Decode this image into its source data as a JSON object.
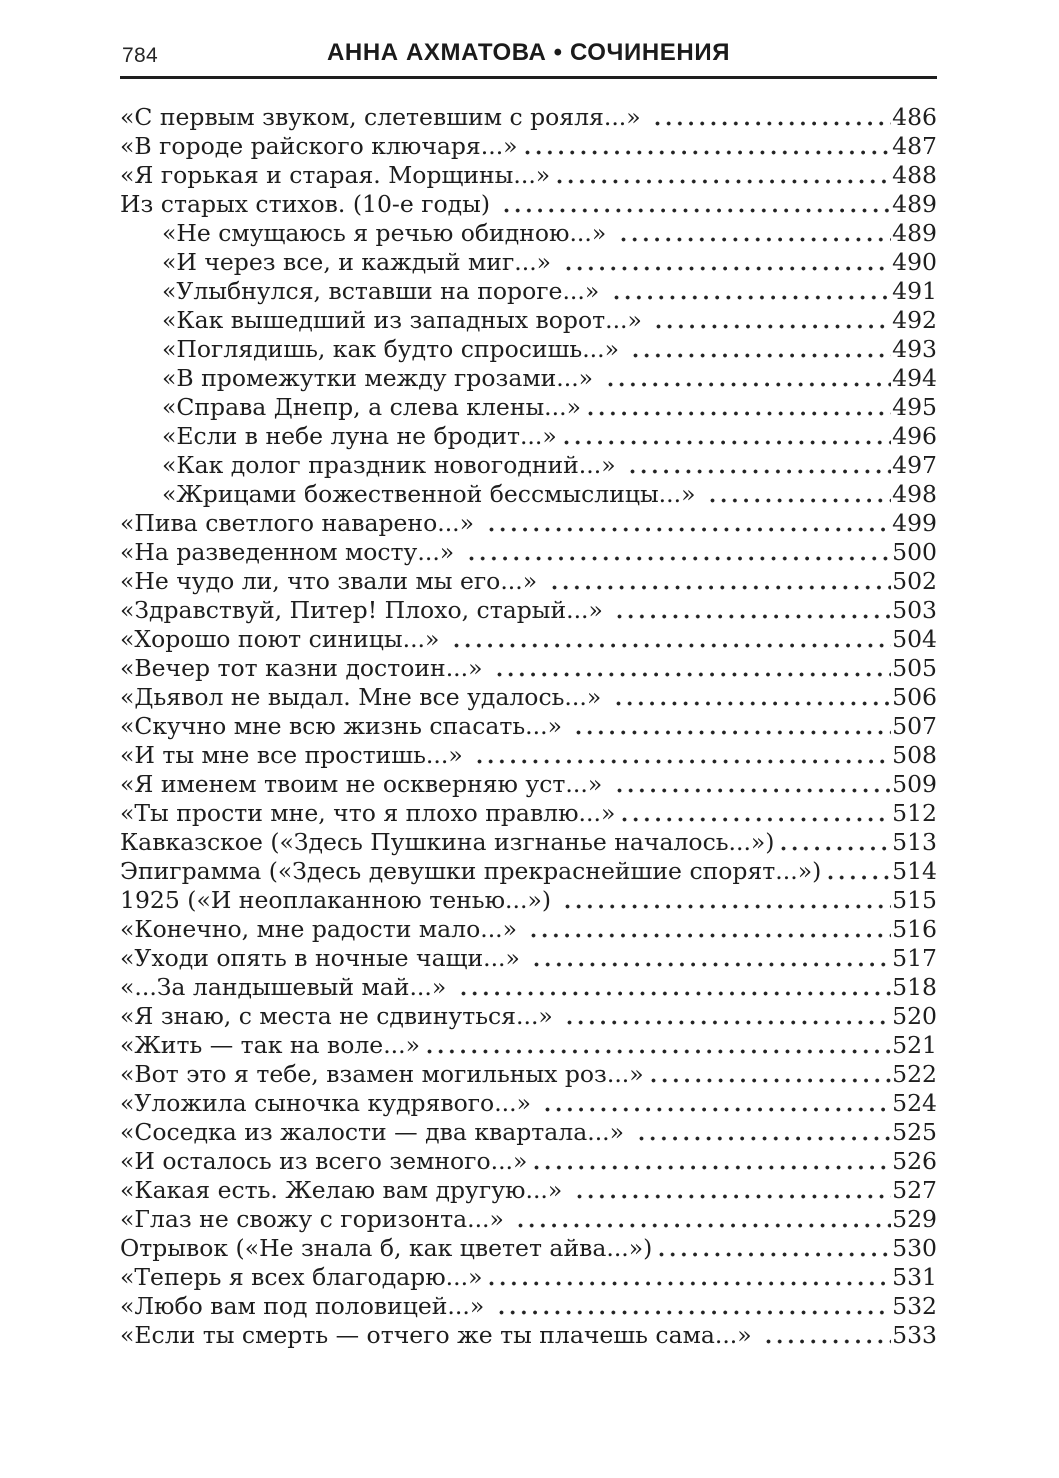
{
  "page": {
    "number": "784",
    "header_title": "АННА АХМАТОВА • СОЧИНЕНИЯ"
  },
  "colors": {
    "background": "#ffffff",
    "text": "#1e1e1e",
    "rule": "#1e1e1e"
  },
  "toc": {
    "entries": [
      {
        "title": "«С первым звуком, слетевшим с рояля...» ",
        "page": "486",
        "indent": 0
      },
      {
        "title": "«В городе райского ключаря...»",
        "page": "487",
        "indent": 0
      },
      {
        "title": "«Я горькая и старая. Морщины...»",
        "page": "488",
        "indent": 0
      },
      {
        "title": "Из старых стихов. (10-е годы) ",
        "page": "489",
        "indent": 0
      },
      {
        "title": "«Не смущаюсь я речью обидною...» ",
        "page": "489",
        "indent": 1
      },
      {
        "title": "«И через все, и каждый миг...» ",
        "page": "490",
        "indent": 1
      },
      {
        "title": "«Улыбнулся, вставши на пороге...» ",
        "page": "491",
        "indent": 1
      },
      {
        "title": "«Как вышедший из западных ворот...» ",
        "page": "492",
        "indent": 1
      },
      {
        "title": "«Поглядишь, как будто спросишь...» ",
        "page": "493",
        "indent": 1
      },
      {
        "title": "«В промежутки между грозами...» ",
        "page": "494",
        "indent": 1
      },
      {
        "title": "«Справа Днепр, а слева клены...»",
        "page": "495",
        "indent": 1
      },
      {
        "title": "«Если в небе луна не бродит...»",
        "page": "496",
        "indent": 1
      },
      {
        "title": "«Как долог праздник новогодний...» ",
        "page": "497",
        "indent": 1
      },
      {
        "title": "«Жрицами божественной бессмыслицы...» ",
        "page": "498",
        "indent": 1
      },
      {
        "title": "«Пива светлого наварено...» ",
        "page": "499",
        "indent": 0
      },
      {
        "title": "«На разведенном мосту...» ",
        "page": "500",
        "indent": 0
      },
      {
        "title": "«Не чудо ли, что звали мы его...» ",
        "page": "502",
        "indent": 0
      },
      {
        "title": "«Здравствуй, Питер! Плохо, старый...» ",
        "page": "503",
        "indent": 0
      },
      {
        "title": "«Хорошо поют синицы...» ",
        "page": "504",
        "indent": 0
      },
      {
        "title": "«Вечер тот казни достоин...» ",
        "page": "505",
        "indent": 0
      },
      {
        "title": "«Дьявол не выдал. Мне все удалось...» ",
        "page": "506",
        "indent": 0
      },
      {
        "title": "«Скучно мне всю жизнь спасать...» ",
        "page": "507",
        "indent": 0
      },
      {
        "title": "«И ты мне все простишь...» ",
        "page": "508",
        "indent": 0
      },
      {
        "title": "«Я именем твоим не оскверняю уст...» ",
        "page": "509",
        "indent": 0
      },
      {
        "title": "«Ты прости мне, что я плохо правлю...»",
        "page": "512",
        "indent": 0
      },
      {
        "title": "Кавказское («Здесь Пушкина изгнанье началось...»)",
        "page": "513",
        "indent": 0
      },
      {
        "title": "Эпиграмма («Здесь девушки прекраснейшие спорят...»)",
        "page": "514",
        "indent": 0
      },
      {
        "title": "1925 («И неоплаканною тенью...») ",
        "page": "515",
        "indent": 0
      },
      {
        "title": "«Конечно, мне радости мало...» ",
        "page": "516",
        "indent": 0
      },
      {
        "title": "«Уходи опять в ночные чащи...» ",
        "page": "517",
        "indent": 0
      },
      {
        "title": "«...За ландышевый май...» ",
        "page": "518",
        "indent": 0
      },
      {
        "title": "«Я знаю, с места не сдвинуться...» ",
        "page": "520",
        "indent": 0
      },
      {
        "title": "«Жить — так на воле...»",
        "page": "521",
        "indent": 0
      },
      {
        "title": "«Вот это я тебе, взамен могильных роз...»",
        "page": "522",
        "indent": 0
      },
      {
        "title": "«Уложила сыночка кудрявого...» ",
        "page": "524",
        "indent": 0
      },
      {
        "title": "«Соседка из жалости — два квартала...» ",
        "page": "525",
        "indent": 0
      },
      {
        "title": "«И осталось из всего земного...»",
        "page": "526",
        "indent": 0
      },
      {
        "title": "«Какая есть. Желаю вам другую...» ",
        "page": "527",
        "indent": 0
      },
      {
        "title": "«Глаз не свожу с горизонта...» ",
        "page": "529",
        "indent": 0
      },
      {
        "title": "Отрывок («Не знала б, как цветет айва...»)",
        "page": "530",
        "indent": 0
      },
      {
        "title": "«Теперь я всех благодарю...»",
        "page": "531",
        "indent": 0
      },
      {
        "title": "«Любо вам под половицей...» ",
        "page": "532",
        "indent": 0
      },
      {
        "title": "«Если ты смерть — отчего же ты плачешь сама...» ",
        "page": "533",
        "indent": 0
      }
    ]
  }
}
